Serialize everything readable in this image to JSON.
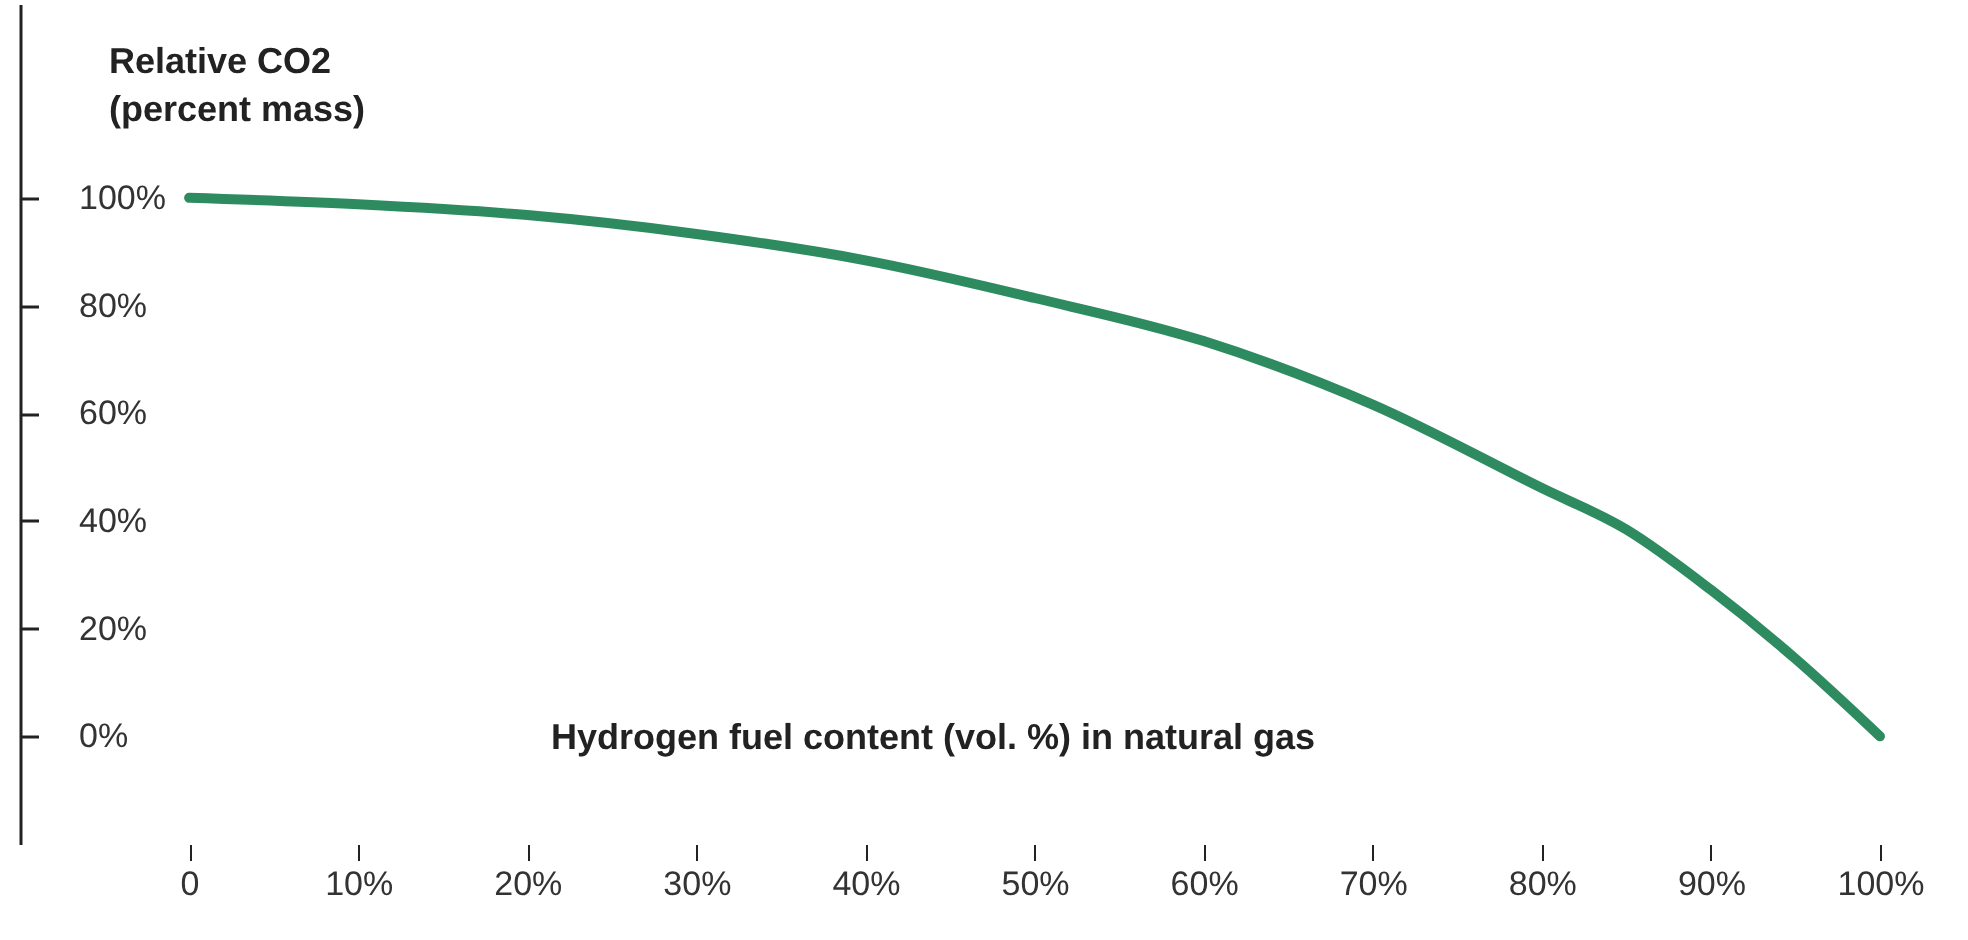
{
  "chart_data": {
    "type": "line",
    "ylabel": "Relative CO2\n(percent mass)",
    "xlabel": "Hydrogen fuel content (vol. %) in natural gas",
    "x": [
      0,
      10,
      20,
      30,
      40,
      50,
      60,
      70,
      80,
      85,
      90,
      95,
      100
    ],
    "series": [
      {
        "color": "#2e8b60",
        "values": [
          100,
          98.8,
          96.8,
          93.3,
          88.4,
          81.4,
          73.4,
          61.6,
          46.1,
          38.4,
          27.2,
          14.4,
          0
        ]
      }
    ],
    "xlim": [
      -10,
      100
    ],
    "ylim": [
      -20,
      136
    ],
    "xticks": [
      {
        "value": 0,
        "label": "0"
      },
      {
        "value": 10,
        "label": "10%"
      },
      {
        "value": 20,
        "label": "20%"
      },
      {
        "value": 30,
        "label": "30%"
      },
      {
        "value": 40,
        "label": "40%"
      },
      {
        "value": 50,
        "label": "50%"
      },
      {
        "value": 60,
        "label": "60%"
      },
      {
        "value": 70,
        "label": "70%"
      },
      {
        "value": 80,
        "label": "80%"
      },
      {
        "value": 90,
        "label": "90%"
      },
      {
        "value": 100,
        "label": "100%"
      }
    ],
    "yticks": [
      {
        "value": 0,
        "label": "0%"
      },
      {
        "value": 20,
        "label": "20%"
      },
      {
        "value": 40,
        "label": "40%"
      },
      {
        "value": 60,
        "label": "60%"
      },
      {
        "value": 80,
        "label": "80%"
      },
      {
        "value": 100,
        "label": "100%"
      }
    ],
    "grid": false,
    "marker": "none",
    "line_style": "solid"
  }
}
